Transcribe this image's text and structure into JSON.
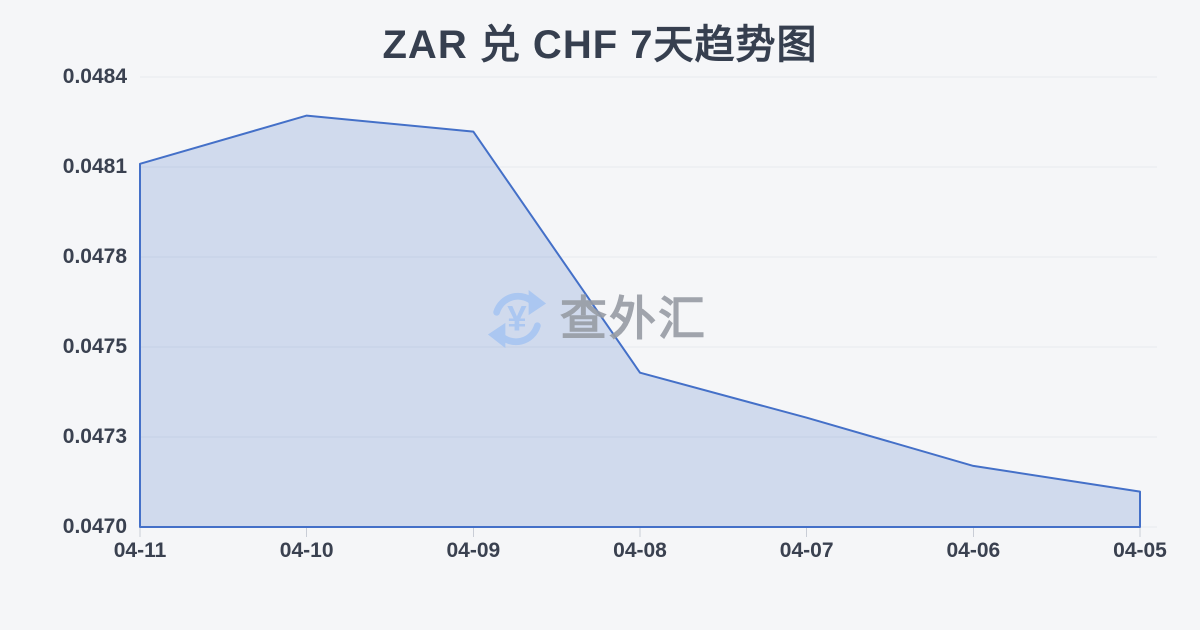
{
  "title": "ZAR 兑 CHF 7天趋势图",
  "watermark": {
    "text": "查外汇",
    "icon": "currency-exchange-refresh-icon"
  },
  "chart_data": {
    "type": "area",
    "title": "ZAR 兑 CHF 7天趋势图",
    "categories": [
      "04-11",
      "04-10",
      "04-09",
      "04-08",
      "04-07",
      "04-06",
      "04-05"
    ],
    "series": [
      {
        "name": "ZAR/CHF",
        "values": [
          0.04813,
          0.04828,
          0.04823,
          0.04748,
          0.04734,
          0.04719,
          0.04711
        ]
      }
    ],
    "xlabel": "",
    "ylabel": "",
    "ylim": [
      0.047,
      0.0484
    ],
    "y_tick_labels": [
      "0.0484",
      "0.0481",
      "0.0478",
      "0.0475",
      "0.0473",
      "0.0470"
    ],
    "grid": true,
    "legend_position": "none",
    "colors": {
      "line": "#4470c8",
      "fill": "rgba(79,118,200,0.22)",
      "grid": "#e7e9ee",
      "tick": "#c9cdd6",
      "axis_text": "#3a4150",
      "title_text": "#363f4f",
      "watermark_text": "#979ca4",
      "watermark_icon": "#a7c5f2",
      "background": "#f5f6f8"
    }
  }
}
